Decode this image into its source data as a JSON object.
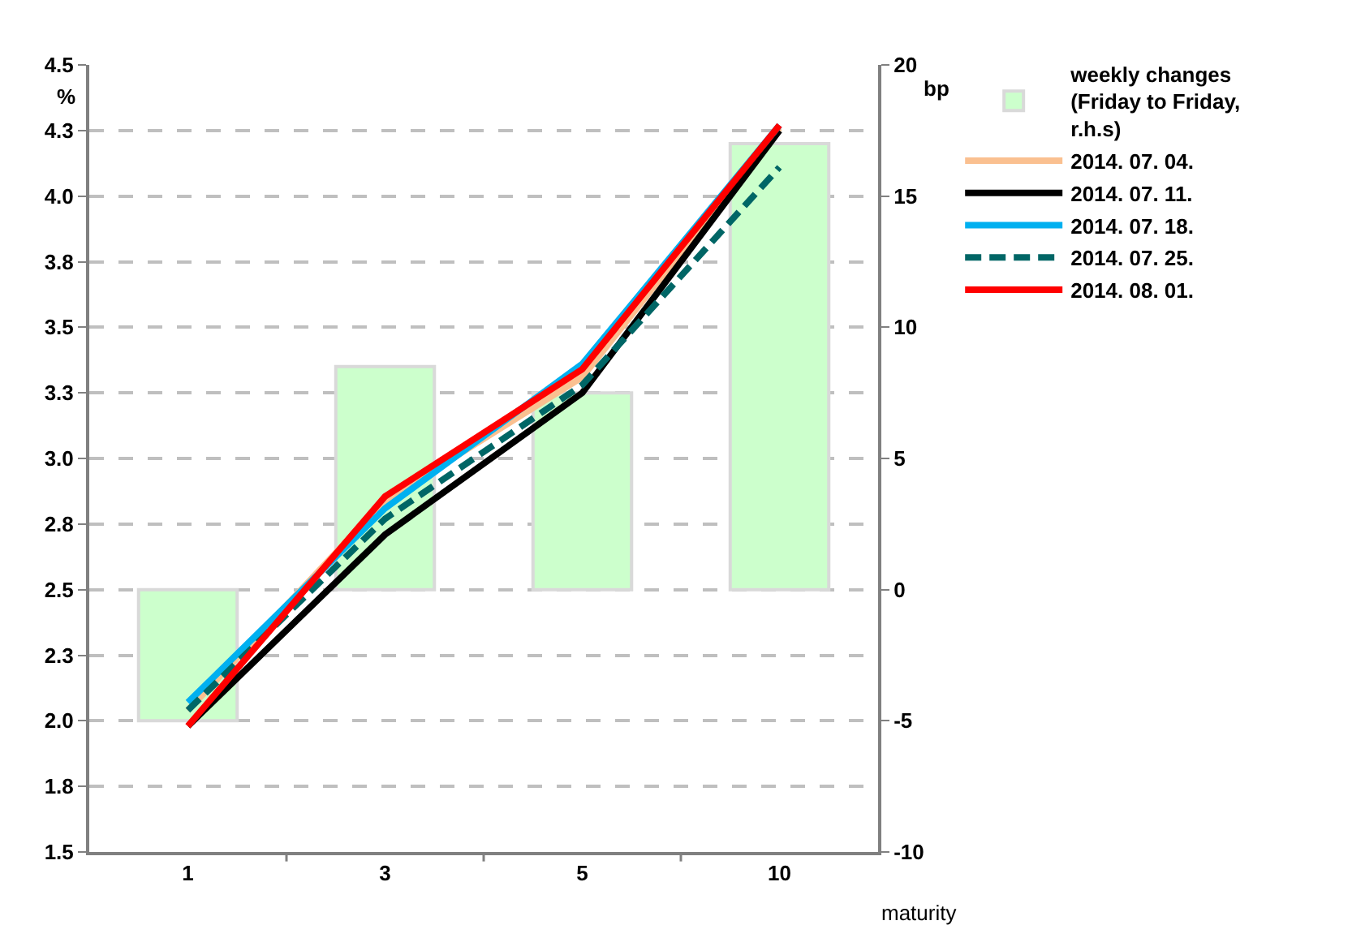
{
  "chart_data": {
    "type": "line",
    "categories": [
      "1",
      "3",
      "5",
      "10"
    ],
    "xlabel": "maturity",
    "ylabel": "%",
    "y2label": "bp",
    "ylim": [
      1.5,
      4.5
    ],
    "yticks": [
      1.5,
      {
        "value": 1.75,
        "label": "1.8"
      },
      {
        "value": 2,
        "label": "2.0"
      },
      {
        "value": 2.25,
        "label": "2.3"
      },
      2.5,
      {
        "value": 2.75,
        "label": "2.8"
      },
      {
        "value": 3,
        "label": "3.0"
      },
      {
        "value": 3.25,
        "label": "3.3"
      },
      3.5,
      {
        "value": 3.75,
        "label": "3.8"
      },
      {
        "value": 4,
        "label": "4.0"
      },
      {
        "value": 4.25,
        "label": "4.3"
      },
      4.5
    ],
    "y2lim": [
      -10,
      20
    ],
    "y2ticks": [
      -10,
      -5,
      0,
      5,
      10,
      15,
      20
    ],
    "grid": "y",
    "legend": "right",
    "marker": "none",
    "series": [
      {
        "name": "weekly changes (Friday to Friday, r.h.s)",
        "type": "bar",
        "axis": "y2",
        "color": "#ccffcc",
        "values": [
          -5,
          8.5,
          7.5,
          17
        ]
      },
      {
        "name": "2014. 07. 04.",
        "color": "#fac090",
        "line_style": "solid",
        "values": [
          2.04,
          2.84,
          3.31,
          4.26
        ]
      },
      {
        "name": "2014. 07. 11.",
        "color": "#000000",
        "line_style": "solid",
        "values": [
          1.98,
          2.71,
          3.25,
          4.25
        ]
      },
      {
        "name": "2014. 07. 18.",
        "color": "#00b0f0",
        "line_style": "solid",
        "values": [
          2.07,
          2.81,
          3.36,
          4.27
        ]
      },
      {
        "name": "2014. 07. 25.",
        "color": "#006666",
        "line_style": "dashed",
        "values": [
          2.04,
          2.77,
          3.28,
          4.11
        ]
      },
      {
        "name": "2014. 08. 01.",
        "color": "#ff0000",
        "line_style": "solid",
        "values": [
          1.98,
          2.855,
          3.34,
          4.27
        ]
      }
    ]
  }
}
